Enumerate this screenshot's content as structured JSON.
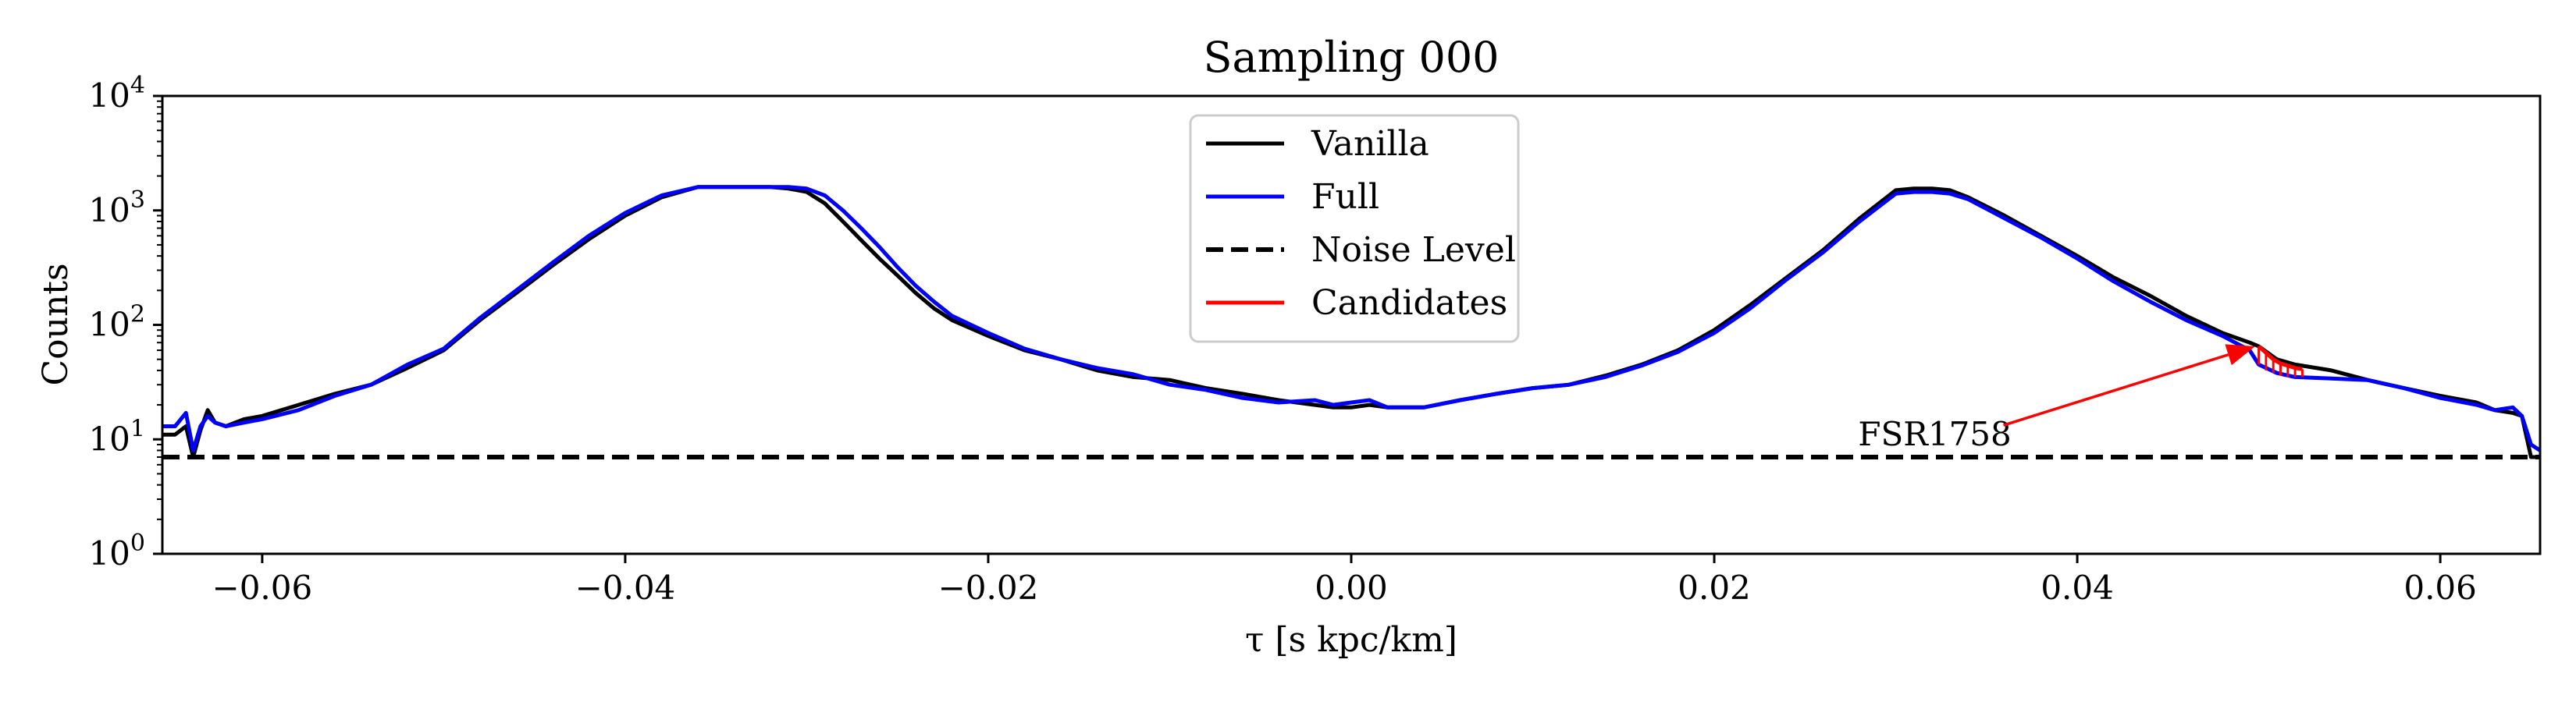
{
  "chart_data": {
    "type": "line",
    "title": "Sampling 000",
    "xlabel": "τ [s kpc/km]",
    "ylabel": "Counts",
    "xlim": [
      -0.0655,
      0.0655
    ],
    "ylim": [
      1,
      10000
    ],
    "yscale": "log",
    "grid": false,
    "legend_position": "top-center",
    "x_ticks": [
      -0.06,
      -0.04,
      -0.02,
      0.0,
      0.02,
      0.04,
      0.06
    ],
    "x_tick_labels": [
      "−0.06",
      "−0.04",
      "−0.02",
      "0.00",
      "0.02",
      "0.04",
      "0.06"
    ],
    "y_ticks": [
      1,
      10,
      100,
      1000,
      10000
    ],
    "y_tick_labels": [
      {
        "base": "10",
        "exp": "0"
      },
      {
        "base": "10",
        "exp": "1"
      },
      {
        "base": "10",
        "exp": "2"
      },
      {
        "base": "10",
        "exp": "3"
      },
      {
        "base": "10",
        "exp": "4"
      }
    ],
    "series": [
      {
        "name": "Vanilla",
        "color": "#000000",
        "style": "solid",
        "x": [
          -0.0655,
          -0.0648,
          -0.0642,
          -0.0638,
          -0.0634,
          -0.063,
          -0.0626,
          -0.062,
          -0.061,
          -0.06,
          -0.058,
          -0.056,
          -0.054,
          -0.052,
          -0.05,
          -0.048,
          -0.046,
          -0.044,
          -0.042,
          -0.04,
          -0.038,
          -0.036,
          -0.034,
          -0.032,
          -0.031,
          -0.03,
          -0.029,
          -0.028,
          -0.027,
          -0.026,
          -0.025,
          -0.024,
          -0.023,
          -0.022,
          -0.02,
          -0.018,
          -0.016,
          -0.014,
          -0.012,
          -0.01,
          -0.008,
          -0.006,
          -0.004,
          -0.002,
          -0.001,
          0.0,
          0.001,
          0.002,
          0.004,
          0.006,
          0.008,
          0.01,
          0.012,
          0.014,
          0.016,
          0.018,
          0.02,
          0.022,
          0.024,
          0.026,
          0.028,
          0.03,
          0.031,
          0.032,
          0.033,
          0.034,
          0.036,
          0.038,
          0.04,
          0.042,
          0.044,
          0.046,
          0.048,
          0.0495,
          0.05,
          0.051,
          0.052,
          0.054,
          0.056,
          0.058,
          0.06,
          0.062,
          0.063,
          0.064,
          0.0645,
          0.065,
          0.0655
        ],
        "y": [
          11,
          11,
          13,
          7,
          12,
          18,
          14,
          13,
          15,
          16,
          20,
          25,
          30,
          42,
          60,
          110,
          190,
          330,
          560,
          900,
          1300,
          1600,
          1600,
          1600,
          1550,
          1450,
          1150,
          800,
          550,
          380,
          270,
          190,
          140,
          110,
          80,
          60,
          50,
          40,
          35,
          33,
          28,
          25,
          22,
          20,
          19,
          19,
          20,
          19,
          19,
          22,
          25,
          28,
          30,
          36,
          45,
          60,
          90,
          150,
          260,
          450,
          850,
          1500,
          1550,
          1550,
          1500,
          1300,
          900,
          600,
          400,
          260,
          180,
          120,
          85,
          70,
          65,
          50,
          45,
          40,
          33,
          28,
          24,
          21,
          18,
          17,
          16,
          7,
          7
        ]
      },
      {
        "name": "Full",
        "color": "#0000ff",
        "style": "solid",
        "x": [
          -0.0655,
          -0.0648,
          -0.0642,
          -0.0638,
          -0.0634,
          -0.063,
          -0.0626,
          -0.062,
          -0.061,
          -0.06,
          -0.058,
          -0.056,
          -0.054,
          -0.052,
          -0.05,
          -0.048,
          -0.046,
          -0.044,
          -0.042,
          -0.04,
          -0.038,
          -0.036,
          -0.034,
          -0.032,
          -0.031,
          -0.03,
          -0.029,
          -0.028,
          -0.027,
          -0.026,
          -0.025,
          -0.024,
          -0.023,
          -0.022,
          -0.02,
          -0.018,
          -0.016,
          -0.014,
          -0.012,
          -0.01,
          -0.008,
          -0.006,
          -0.004,
          -0.002,
          -0.001,
          0.0,
          0.001,
          0.002,
          0.004,
          0.006,
          0.008,
          0.01,
          0.012,
          0.014,
          0.016,
          0.018,
          0.02,
          0.022,
          0.024,
          0.026,
          0.028,
          0.03,
          0.031,
          0.032,
          0.033,
          0.034,
          0.036,
          0.038,
          0.04,
          0.042,
          0.044,
          0.046,
          0.048,
          0.0495,
          0.05,
          0.051,
          0.052,
          0.054,
          0.056,
          0.058,
          0.06,
          0.062,
          0.063,
          0.064,
          0.0645,
          0.065,
          0.0655
        ],
        "y": [
          13,
          13,
          17,
          8,
          13,
          16,
          14,
          13,
          14,
          15,
          18,
          24,
          30,
          45,
          62,
          115,
          200,
          350,
          600,
          950,
          1350,
          1600,
          1600,
          1600,
          1600,
          1550,
          1350,
          1000,
          700,
          480,
          320,
          220,
          160,
          120,
          85,
          62,
          50,
          42,
          37,
          30,
          27,
          23,
          21,
          22,
          20,
          21,
          22,
          19,
          19,
          22,
          25,
          28,
          30,
          35,
          44,
          58,
          85,
          140,
          250,
          430,
          800,
          1400,
          1450,
          1450,
          1400,
          1250,
          850,
          580,
          380,
          240,
          160,
          110,
          80,
          60,
          45,
          38,
          35,
          34,
          33,
          28,
          23,
          20,
          18,
          19,
          16,
          9,
          8
        ]
      },
      {
        "name": "Noise Level",
        "color": "#000000",
        "style": "dashed",
        "x": [
          -0.0655,
          0.0655
        ],
        "y": [
          7,
          7
        ]
      },
      {
        "name": "Candidates",
        "color": "#ff0000",
        "style": "solid",
        "x": [
          0.05,
          0.0504,
          0.0508,
          0.0512,
          0.0516,
          0.052,
          0.0524
        ],
        "y": [
          65,
          57,
          50,
          46,
          44,
          42,
          41
        ],
        "y_low": [
          45,
          40,
          38,
          36,
          35,
          35,
          35
        ]
      }
    ],
    "annotations": [
      {
        "text": "FSR1758",
        "x": 0.0498,
        "y": 65,
        "text_x": 0.03,
        "text_y": 11,
        "color": "#ff0000"
      }
    ]
  }
}
